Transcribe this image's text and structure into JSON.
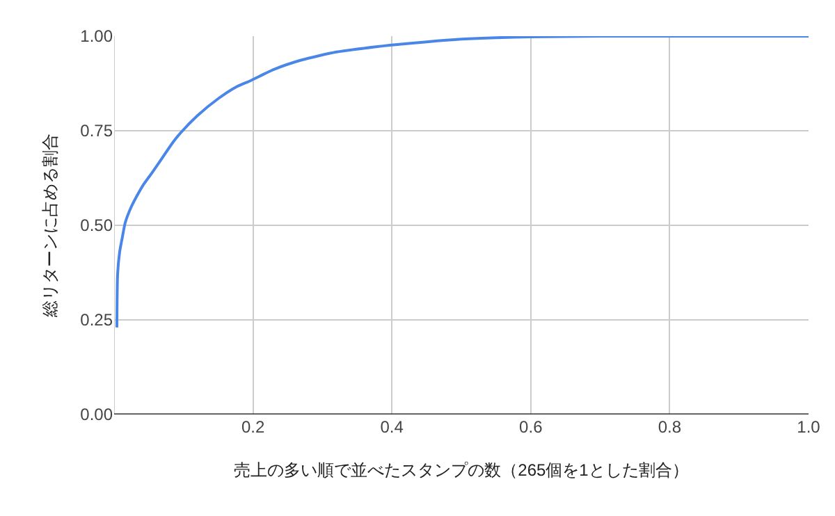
{
  "chart_data": {
    "type": "line",
    "xlabel": "売上の多い順で並べたスタンプの数（265個を1とした割合）",
    "ylabel": "総リターンに占める割合",
    "x": [
      0.004,
      0.005,
      0.008,
      0.012,
      0.016,
      0.025,
      0.035,
      0.042,
      0.055,
      0.07,
      0.085,
      0.096,
      0.12,
      0.15,
      0.175,
      0.196,
      0.23,
      0.27,
      0.32,
      0.377,
      0.397,
      0.45,
      0.5,
      0.55,
      0.6,
      0.7,
      0.8,
      0.9,
      1.0
    ],
    "series": [
      {
        "color": "#4a86e8",
        "values": [
          0.23,
          0.37,
          0.43,
          0.47,
          0.507,
          0.55,
          0.585,
          0.607,
          0.64,
          0.68,
          0.72,
          0.745,
          0.79,
          0.835,
          0.865,
          0.882,
          0.912,
          0.937,
          0.958,
          0.972,
          0.976,
          0.985,
          0.992,
          0.996,
          0.998,
          1.0,
          1.0,
          1.0,
          1.0
        ]
      }
    ],
    "xlim": [
      0,
      1
    ],
    "xticks": [
      0.2,
      0.4,
      0.6,
      0.8,
      {
        "value": 1,
        "label": "1.0"
      }
    ],
    "ylim": [
      0,
      1
    ],
    "yticks": [
      {
        "value": 0,
        "label": "0.00"
      },
      {
        "value": 0.25,
        "label": "0.25"
      },
      {
        "value": 0.5,
        "label": "0.50"
      },
      {
        "value": 0.75,
        "label": "0.75"
      },
      {
        "value": 1,
        "label": "1.00"
      }
    ],
    "grid": true,
    "legend": false,
    "marker": "none",
    "line_style": "solid"
  }
}
